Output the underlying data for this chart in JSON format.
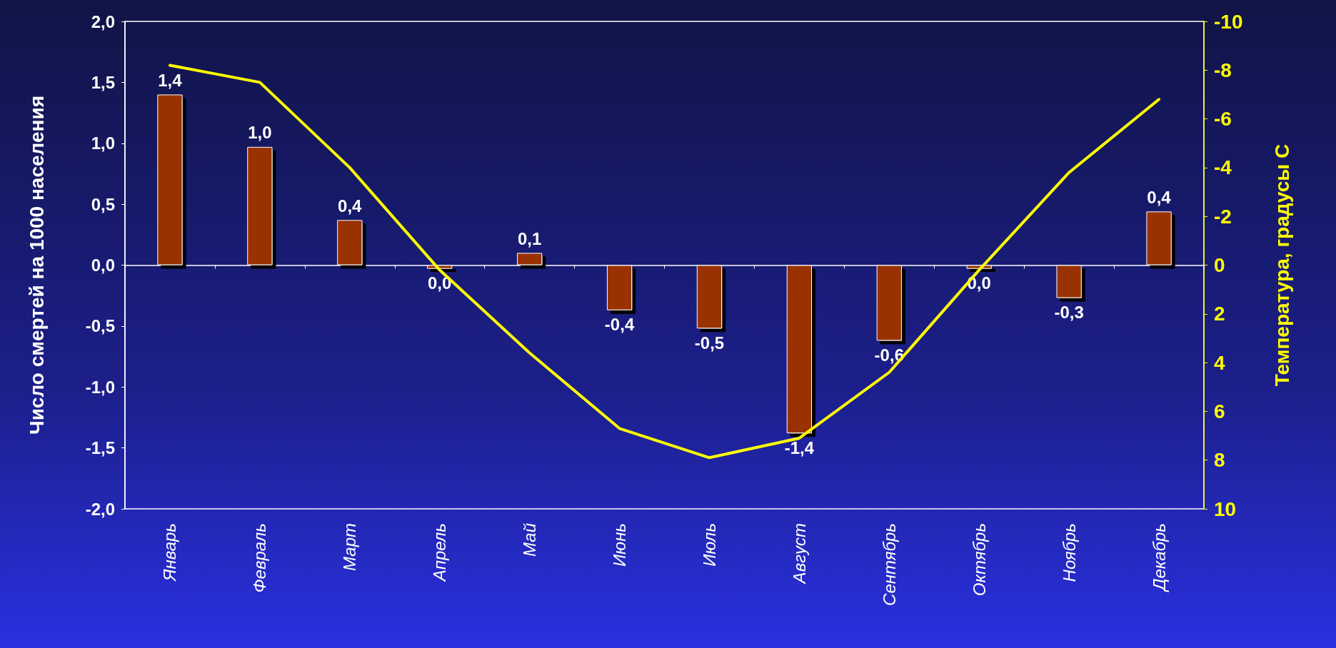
{
  "chart_data": {
    "type": "bar",
    "ylabel": "Число смертей на 1000 населения",
    "y2label": "Температура, градусы С",
    "categories": [
      "Январь",
      "Февраль",
      "Март",
      "Апрель",
      "Май",
      "Июнь",
      "Июль",
      "Август",
      "Сентябрь",
      "Октябрь",
      "Ноябрь",
      "Декабрь"
    ],
    "ylim": [
      -2,
      2
    ],
    "yticks": [
      {
        "value": -2,
        "label": "-2,0"
      },
      {
        "value": -1.5,
        "label": "-1,5"
      },
      {
        "value": -1,
        "label": "-1,0"
      },
      {
        "value": -0.5,
        "label": "-0,5"
      },
      {
        "value": 0,
        "label": "0,0"
      },
      {
        "value": 0.5,
        "label": "0,5"
      },
      {
        "value": 1,
        "label": "1,0"
      },
      {
        "value": 1.5,
        "label": "1,5"
      },
      {
        "value": 2,
        "label": "2,0"
      }
    ],
    "y2lim": [
      10,
      -10
    ],
    "y2ticks": [
      -10,
      -8,
      -6,
      -4,
      -2,
      0,
      2,
      4,
      6,
      8,
      10
    ],
    "series": [
      {
        "color": "#993300",
        "values": [
          1.4,
          0.97,
          0.37,
          -0.03,
          0.1,
          -0.37,
          -0.52,
          -1.38,
          -0.62,
          -0.03,
          -0.27,
          0.44
        ],
        "value_labels": [
          "1,4",
          "1,0",
          "0,4",
          "0,0",
          "0,1",
          "-0,4",
          "-0,5",
          "-1,4",
          "-0,6",
          "0,0",
          "-0,3",
          "0,4"
        ]
      },
      {
        "type": "line",
        "axis": "y2",
        "color": "#ffff00",
        "values": [
          -8.2,
          -7.5,
          -4.0,
          0.2,
          3.6,
          6.7,
          7.9,
          7.1,
          4.4,
          0.2,
          -3.8,
          -6.8
        ]
      }
    ],
    "marker": "none",
    "line_style": "solid"
  }
}
